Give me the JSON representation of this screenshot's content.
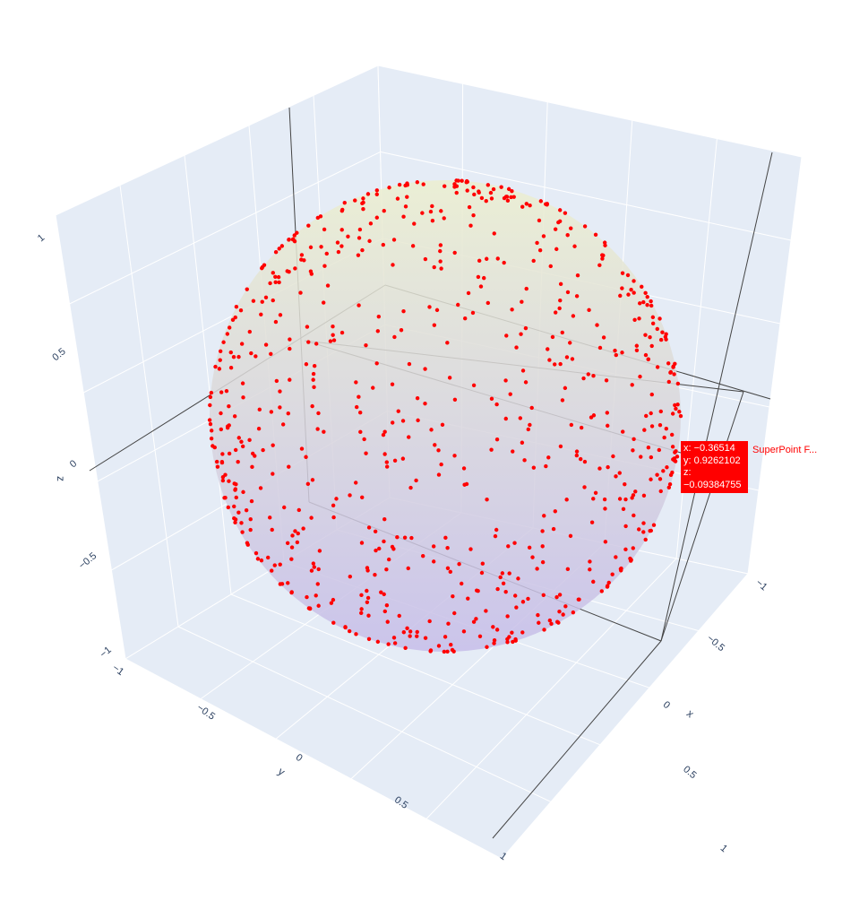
{
  "chart_data": {
    "type": "scatter3d",
    "surface_colors": {
      "top": "#ecefcf",
      "bottom": "#c6bde9"
    },
    "marker_color": "#ff0000",
    "pane_color": "#e5ecf6",
    "grid_color": "#ffffff",
    "axes": {
      "x": {
        "title": "x",
        "range": [
          -1,
          1
        ],
        "ticks": [
          "−1",
          "−0.5",
          "0",
          "0.5",
          "1"
        ]
      },
      "y": {
        "title": "y",
        "range": [
          -1,
          1
        ],
        "ticks": [
          "−1",
          "−0.5",
          "0",
          "0.5",
          "1"
        ]
      },
      "z": {
        "title": "z",
        "range": [
          -1,
          1
        ],
        "ticks": [
          "−1",
          "−0.5",
          "0",
          "0.5",
          "1"
        ]
      }
    },
    "hover": {
      "x": "x: −0.36514",
      "y": "y: 0.9262102",
      "z": "z: −0.09384755",
      "trace_name": "SuperPoint F..."
    }
  }
}
